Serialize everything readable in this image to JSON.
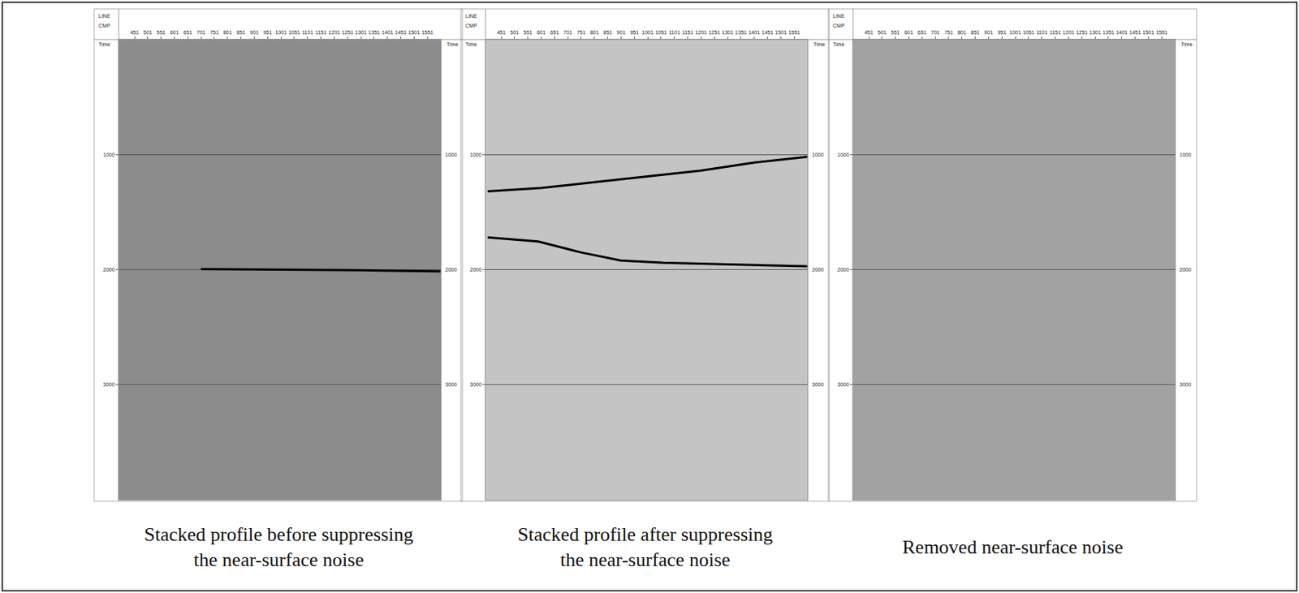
{
  "chart_data": [
    {
      "type": "line",
      "title": "Stacked profile before suppressing the near-surface noise",
      "header_label": "LINE",
      "xlabel": "CMP",
      "ylabel": "Time",
      "xlim": [
        392,
        1601
      ],
      "xticks": [
        451,
        501,
        551,
        601,
        651,
        701,
        751,
        801,
        851,
        901,
        951,
        1001,
        1051,
        1101,
        1151,
        1201,
        1251,
        1301,
        1351,
        1401,
        1451,
        1501,
        1551
      ],
      "ylim": [
        4000,
        0
      ],
      "yticks": [
        1000,
        2000,
        3000
      ],
      "grid": true,
      "tick_labels": true,
      "series": [
        {
          "color": "#000000",
          "x": [
            700,
            1000,
            1300,
            1600
          ],
          "values": [
            1995,
            2000,
            2005,
            2015
          ]
        }
      ]
    },
    {
      "type": "line",
      "title": "Stacked profile after suppressing the near-surface noise",
      "header_label": "LINE",
      "xlabel": "CMP",
      "ylabel": "Time",
      "xlim": [
        392,
        1601
      ],
      "xticks": [
        451,
        501,
        551,
        601,
        651,
        701,
        751,
        801,
        851,
        901,
        951,
        1001,
        1051,
        1101,
        1151,
        1201,
        1251,
        1301,
        1351,
        1401,
        1451,
        1501,
        1551
      ],
      "ylim": [
        4000,
        0
      ],
      "yticks": [
        1000,
        2000,
        3000
      ],
      "grid": true,
      "tick_labels": true,
      "series": [
        {
          "color": "#000000",
          "x": [
            400,
            600,
            800,
            1000,
            1200,
            1400,
            1600
          ],
          "values": [
            1320,
            1290,
            1240,
            1190,
            1140,
            1070,
            1020
          ]
        },
        {
          "color": "#000000",
          "x": [
            400,
            590,
            750,
            900,
            1060,
            1370,
            1600
          ],
          "values": [
            1720,
            1755,
            1850,
            1920,
            1940,
            1957,
            1971
          ]
        }
      ]
    },
    {
      "type": "line",
      "title": "Removed near-surface noise",
      "header_label": "LINE",
      "xlabel": "CMP",
      "ylabel": "Time",
      "xlim": [
        392,
        1601
      ],
      "xticks": [
        451,
        501,
        551,
        601,
        651,
        701,
        751,
        801,
        851,
        901,
        951,
        1001,
        1051,
        1101,
        1151,
        1201,
        1251,
        1301,
        1351,
        1401,
        1451,
        1501,
        1551
      ],
      "ylim": [
        4000,
        0
      ],
      "yticks": [
        1000,
        2000,
        3000
      ],
      "grid": true,
      "tick_labels": true,
      "series": []
    }
  ]
}
